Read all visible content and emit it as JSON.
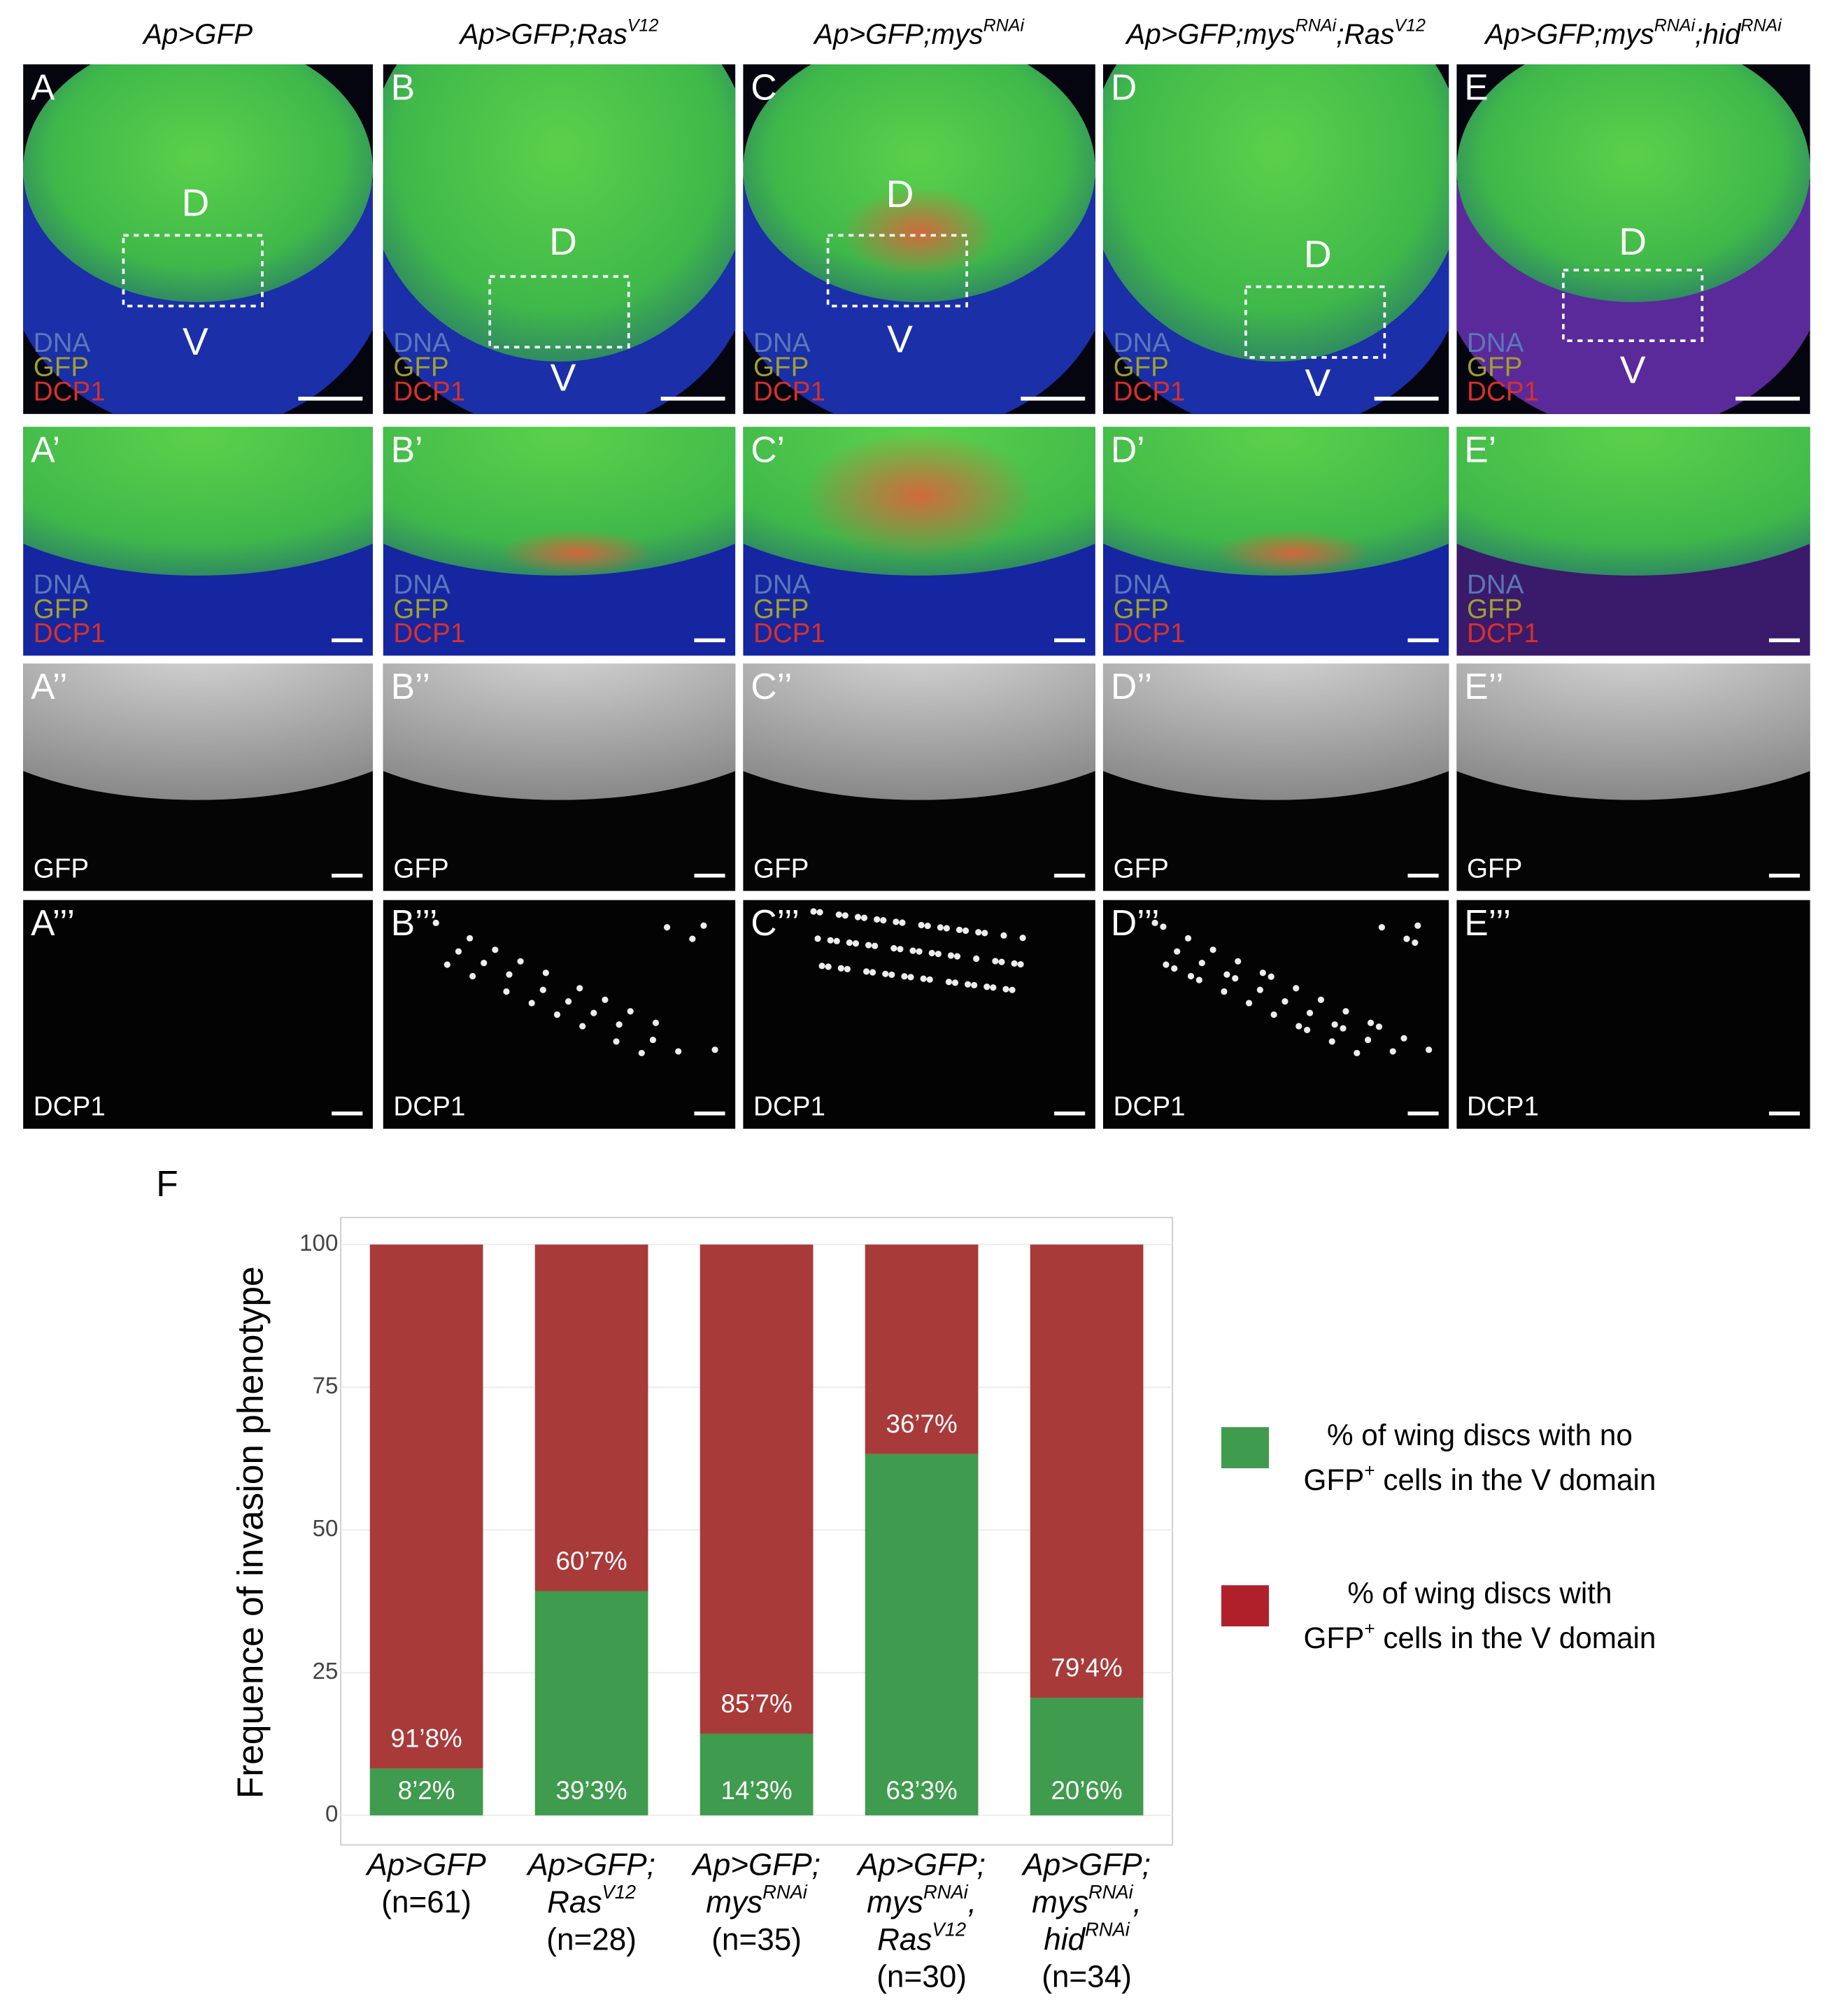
{
  "figure": {
    "columns": [
      {
        "title": [
          "Ap>GFP"
        ]
      },
      {
        "title": [
          "Ap>GFP;Ras",
          "V12"
        ]
      },
      {
        "title": [
          "Ap>GFP;mys",
          "RNAi"
        ]
      },
      {
        "title": [
          "Ap>GFP;mys",
          "RNAi",
          ";Ras",
          "V12"
        ]
      },
      {
        "title": [
          "Ap>GFP;mys",
          "RNAi",
          ";hid",
          "RNAi"
        ]
      }
    ],
    "rows": [
      {
        "labels": [
          "A",
          "B",
          "C",
          "D",
          "E"
        ],
        "channels": [
          "DNA",
          "GFP",
          "DCP1"
        ]
      },
      {
        "labels": [
          "A’",
          "B’",
          "C’",
          "D’",
          "E’"
        ],
        "channels": [
          "DNA",
          "GFP",
          "DCP1"
        ]
      },
      {
        "labels": [
          "A’’",
          "B’’",
          "C’’",
          "D’’",
          "E’’"
        ],
        "channels": [
          "GFP"
        ]
      },
      {
        "labels": [
          "A’’’",
          "B’’’",
          "C’’’",
          "D’’’",
          "E’’’"
        ],
        "channels": [
          "DCP1"
        ]
      }
    ],
    "domains": [
      "D",
      "V"
    ]
  },
  "chart_data": {
    "type": "bar",
    "stacked": true,
    "panel_label": "F",
    "ylabel": "Frequence of invasion phenotype",
    "categories": [
      [
        [
          "Ap>GFP"
        ],
        [
          "(n=61)"
        ]
      ],
      [
        [
          "Ap>GFP;"
        ],
        [
          "Ras",
          "V12"
        ],
        [
          "(n=28)"
        ]
      ],
      [
        [
          "Ap>GFP;"
        ],
        [
          "mys",
          "RNAi"
        ],
        [
          "(n=35)"
        ]
      ],
      [
        [
          "Ap>GFP;"
        ],
        [
          "mys",
          "RNAi",
          ","
        ],
        [
          "Ras",
          "V12"
        ],
        [
          "(n=30)"
        ]
      ],
      [
        [
          "Ap>GFP;"
        ],
        [
          "mys",
          "RNAi",
          ","
        ],
        [
          "hid",
          "RNAi"
        ],
        [
          "(n=34)"
        ]
      ]
    ],
    "series": [
      {
        "name": [
          [
            "% of wing discs with no"
          ],
          [
            "GFP",
            "+",
            " cells in the V domain"
          ]
        ],
        "color": "#3f9b4d",
        "values": [
          8.2,
          39.3,
          14.3,
          63.3,
          20.6
        ],
        "value_labels": [
          "8’2%",
          "39’3%",
          "14’3%",
          "63’3%",
          "20’6%"
        ]
      },
      {
        "name": [
          [
            "% of wing discs with"
          ],
          [
            "GFP",
            "+",
            " cells in the V domain"
          ]
        ],
        "color": "#a93a3a",
        "values": [
          91.8,
          60.7,
          85.7,
          36.7,
          79.4
        ],
        "value_labels": [
          "91’8%",
          "60’7%",
          "85’7%",
          "36’7%",
          "79’4%"
        ]
      }
    ],
    "ylim": [
      0,
      100
    ],
    "yticks": [
      0,
      25,
      50,
      75,
      100
    ],
    "grid": true
  }
}
